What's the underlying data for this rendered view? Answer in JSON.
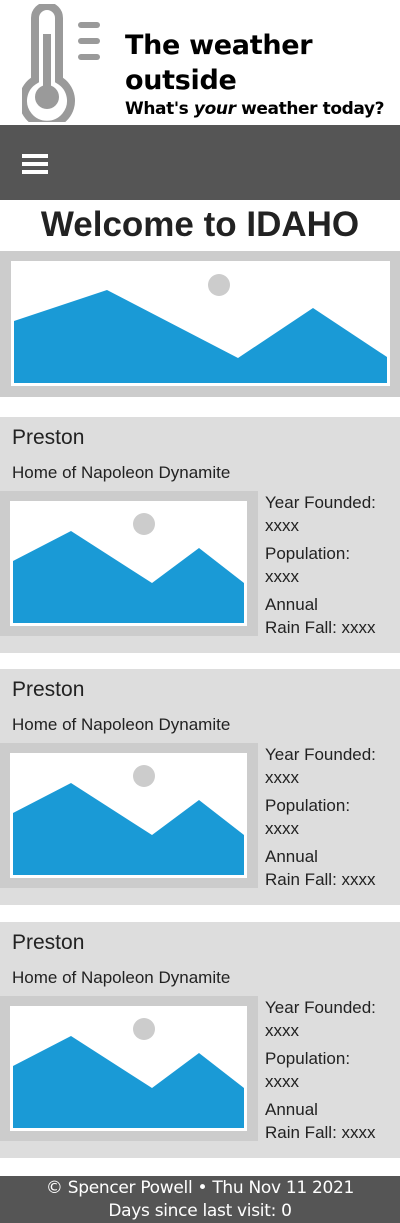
{
  "header": {
    "title": "The weather outside",
    "tagline_before": "What's ",
    "tagline_em": "your",
    "tagline_after": " weather today?",
    "logo_icon": "thermometer-icon"
  },
  "nav": {
    "menu_icon": "hamburger-menu-icon"
  },
  "main": {
    "welcome": "Welcome to IDAHO",
    "hero_icon": "landscape-placeholder-icon"
  },
  "cards": [
    {
      "name": "Preston",
      "tagline": "Home of Napoleon Dynamite",
      "founded_label": "Year Founded:",
      "founded_value": "xxxx",
      "population_label": "Population:",
      "population_value": "xxxx",
      "rain_label_1": "Annual",
      "rain_label_2": "Rain Fall: xxxx"
    },
    {
      "name": "Preston",
      "tagline": "Home of Napoleon Dynamite",
      "founded_label": "Year Founded:",
      "founded_value": "xxxx",
      "population_label": "Population:",
      "population_value": "xxxx",
      "rain_label_1": "Annual",
      "rain_label_2": "Rain Fall: xxxx"
    },
    {
      "name": "Preston",
      "tagline": "Home of Napoleon Dynamite",
      "founded_label": "Year Founded:",
      "founded_value": "xxxx",
      "population_label": "Population:",
      "population_value": "xxxx",
      "rain_label_1": "Annual",
      "rain_label_2": "Rain Fall: xxxx"
    }
  ],
  "footer": {
    "line1": "© Spencer Powell • Thu Nov 11 2021",
    "line2": "Days since last visit: 0"
  },
  "colors": {
    "nav": "#555555",
    "image_blue": "#1a9ad6",
    "frame_gray": "#cccccc",
    "card_bg": "#dddddd"
  }
}
